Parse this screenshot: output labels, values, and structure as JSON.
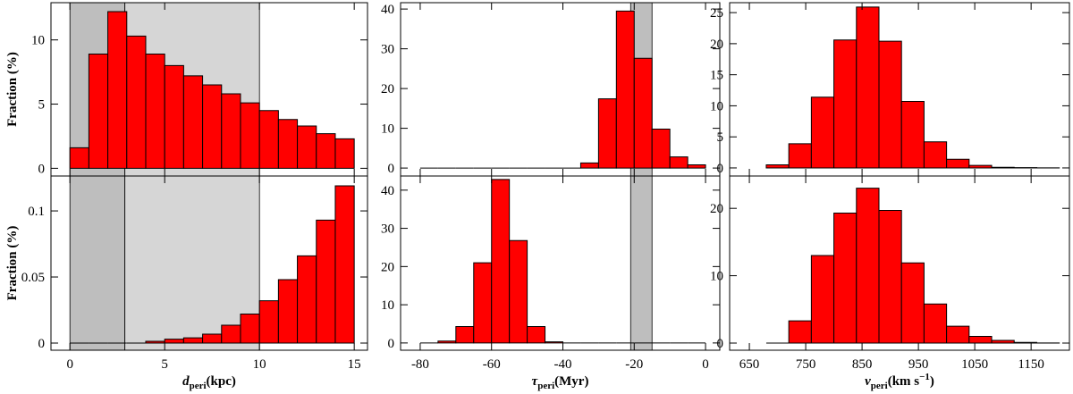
{
  "chart_data": [
    {
      "type": "histogram",
      "bins": [
        0,
        1,
        2,
        3,
        4,
        5,
        6,
        7,
        8,
        9,
        10,
        11,
        12,
        13,
        14,
        15
      ],
      "values": [
        1.6,
        8.9,
        12.2,
        10.3,
        8.9,
        8.0,
        7.2,
        6.5,
        5.8,
        5.1,
        4.5,
        3.8,
        3.3,
        2.7,
        2.3
      ],
      "color": "#ff0000",
      "xlim": [
        -1,
        15.7
      ],
      "ylim": [
        -0.6,
        12.9
      ],
      "xticks": [
        0,
        5,
        10,
        15
      ],
      "yticks": [
        0,
        5,
        10
      ],
      "show_xtick_labels": false,
      "ylabel": "Fraction (%)",
      "shaded": [
        {
          "from": 0,
          "to": 2.9,
          "color": "#bebebe"
        },
        {
          "from": 2.9,
          "to": 10,
          "color": "#d6d6d6"
        }
      ]
    },
    {
      "type": "histogram",
      "bins": [
        -80,
        -75,
        -70,
        -65,
        -60,
        -55,
        -50,
        -45,
        -40,
        -35,
        -30,
        -25,
        -20,
        -15,
        -10,
        -5,
        0
      ],
      "values": [
        0,
        0,
        0,
        0,
        0,
        0,
        0,
        0,
        0,
        1.3,
        17.4,
        39.5,
        27.6,
        9.8,
        2.8,
        0.8
      ],
      "color": "#ff0000",
      "xlim": [
        -85.5,
        4
      ],
      "ylim": [
        -2,
        41.6
      ],
      "xticks": [
        -80,
        -60,
        -40,
        -20,
        0
      ],
      "yticks": [
        0,
        10,
        20,
        30,
        40
      ],
      "show_xtick_labels": false,
      "shaded": [
        {
          "from": -21,
          "to": -15,
          "color": "#bebebe"
        }
      ]
    },
    {
      "type": "histogram",
      "bins": [
        680,
        720,
        760,
        800,
        840,
        880,
        920,
        960,
        1000,
        1040,
        1080,
        1120,
        1160,
        1200
      ],
      "values": [
        0.5,
        3.9,
        11.4,
        20.6,
        25.9,
        20.4,
        10.7,
        4.2,
        1.4,
        0.4,
        0.1,
        0.05,
        0.02
      ],
      "color": "#ff0000",
      "xlim": [
        615,
        1218
      ],
      "ylim": [
        -1.3,
        26.6
      ],
      "xticks": [
        650,
        750,
        850,
        950,
        1050,
        1150
      ],
      "yticks": [
        0,
        5,
        10,
        15,
        20,
        25
      ],
      "show_xtick_labels": false
    },
    {
      "type": "histogram",
      "bins": [
        0,
        1,
        2,
        3,
        4,
        5,
        6,
        7,
        8,
        9,
        10,
        11,
        12,
        13,
        14,
        15
      ],
      "values": [
        0,
        0,
        0,
        0,
        0.0014,
        0.003,
        0.004,
        0.0068,
        0.0135,
        0.022,
        0.032,
        0.048,
        0.066,
        0.093,
        0.119
      ],
      "color": "#ff0000",
      "xlim": [
        -1,
        15.7
      ],
      "ylim": [
        -0.0054,
        0.1264
      ],
      "xticks": [
        0,
        5,
        10,
        15
      ],
      "yticks": [
        0,
        0.05,
        0.1
      ],
      "show_xtick_labels": true,
      "ylabel": "Fraction (%)",
      "xlabel": {
        "symbol": "d",
        "subscript": "peri",
        "unit": "(kpc)"
      },
      "shaded": [
        {
          "from": 0,
          "to": 2.9,
          "color": "#bebebe"
        },
        {
          "from": 2.9,
          "to": 10,
          "color": "#d6d6d6"
        }
      ]
    },
    {
      "type": "histogram",
      "bins": [
        -80,
        -75,
        -70,
        -65,
        -60,
        -55,
        -50,
        -45,
        -40,
        -35,
        -30,
        -25,
        -20,
        -15,
        -10,
        -5,
        0
      ],
      "values": [
        0,
        0.5,
        4.3,
        21,
        42.8,
        26.8,
        4.3,
        0.3,
        0,
        0,
        0,
        0,
        0,
        0,
        0,
        0
      ],
      "color": "#ff0000",
      "xlim": [
        -85.5,
        4
      ],
      "ylim": [
        -1.9,
        43.7
      ],
      "xticks": [
        -80,
        -60,
        -40,
        -20,
        0
      ],
      "yticks": [
        0,
        10,
        20,
        30,
        40
      ],
      "show_xtick_labels": true,
      "xlabel": {
        "symbol": "τ",
        "subscript": "peri",
        "unit": "(Myr)"
      },
      "shaded": [
        {
          "from": -21,
          "to": -15,
          "color": "#bebebe"
        }
      ]
    },
    {
      "type": "histogram",
      "bins": [
        680,
        720,
        760,
        800,
        840,
        880,
        920,
        960,
        1000,
        1040,
        1080,
        1120,
        1160,
        1200
      ],
      "values": [
        0,
        3.3,
        13,
        19.3,
        23,
        19.7,
        11.9,
        5.8,
        2.5,
        1.0,
        0.4,
        0.1,
        0.02
      ],
      "color": "#ff0000",
      "xlim": [
        615,
        1218
      ],
      "ylim": [
        -1.06,
        24.8
      ],
      "xticks": [
        650,
        750,
        850,
        950,
        1050,
        1150
      ],
      "yticks": [
        0,
        10,
        20
      ],
      "show_xtick_labels": true,
      "xlabel": {
        "symbol": "v",
        "subscript": "peri",
        "unit": "(km s",
        "superscript": "−1",
        "unit_close": ")"
      }
    }
  ]
}
